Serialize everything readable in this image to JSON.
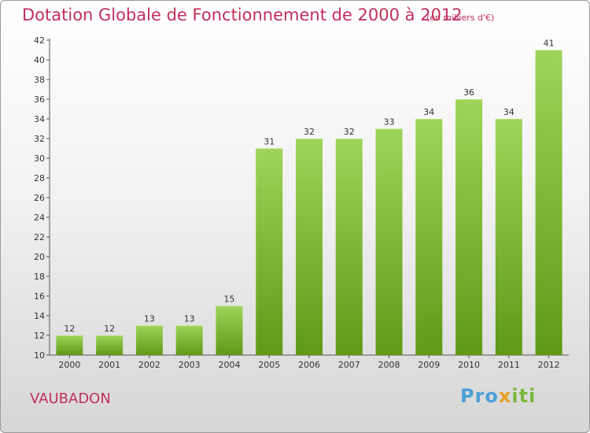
{
  "title": "Dotation Globale de Fonctionnement de 2000 à 2012",
  "subtitle": "(en milliers d'€)",
  "commune": "VAUBADON",
  "logo": {
    "part1": "Pro",
    "part2": "x",
    "part3": "iti"
  },
  "colors": {
    "title": "#c0305a",
    "bar_light": "#9ed45a",
    "bar_dark": "#5e9a16",
    "axis": "#555555"
  },
  "chart_data": {
    "type": "bar",
    "title": "Dotation Globale de Fonctionnement de 2000 à 2012",
    "subtitle": "(en milliers d'€)",
    "xlabel": "",
    "ylabel": "",
    "categories": [
      "2000",
      "2001",
      "2002",
      "2003",
      "2004",
      "2005",
      "2006",
      "2007",
      "2008",
      "2009",
      "2010",
      "2011",
      "2012"
    ],
    "values": [
      12,
      12,
      13,
      13,
      15,
      31,
      32,
      32,
      33,
      34,
      36,
      34,
      41
    ],
    "ylim": [
      10,
      42
    ],
    "yticks": [
      10,
      12,
      14,
      16,
      18,
      20,
      22,
      24,
      26,
      28,
      30,
      32,
      34,
      36,
      38,
      40,
      42
    ],
    "grid": false,
    "data_labels": true
  }
}
